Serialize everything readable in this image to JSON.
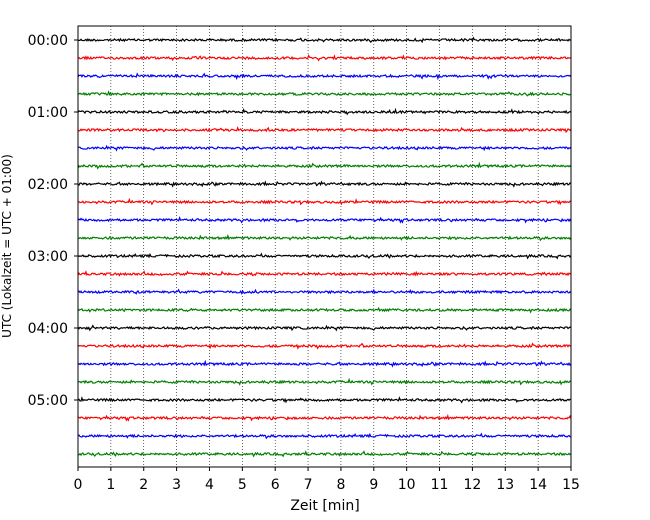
{
  "chart_data": {
    "type": "line",
    "title": "",
    "xlabel": "Zeit  [min]",
    "ylabel": "UTC (Lokalzeit = UTC + 01:00)",
    "xlim": [
      0,
      15
    ],
    "x_ticks": [
      0,
      1,
      2,
      3,
      4,
      5,
      6,
      7,
      8,
      9,
      10,
      11,
      12,
      13,
      14,
      15
    ],
    "x_tick_labels": [
      "0",
      "1",
      "2",
      "3",
      "4",
      "5",
      "6",
      "7",
      "8",
      "9",
      "10",
      "11",
      "12",
      "13",
      "14",
      "15"
    ],
    "y_tick_labels": [
      "00:00",
      "01:00",
      "02:00",
      "03:00",
      "04:00",
      "05:00"
    ],
    "grid": "vertical dotted",
    "legend": "none",
    "trace_colors": [
      "#000000",
      "#ff0000",
      "#0000ff",
      "#008000"
    ],
    "traces": [
      {
        "start": "00:00",
        "color": "#000000"
      },
      {
        "start": "00:15",
        "color": "#ff0000"
      },
      {
        "start": "00:30",
        "color": "#0000ff"
      },
      {
        "start": "00:45",
        "color": "#008000"
      },
      {
        "start": "01:00",
        "color": "#000000"
      },
      {
        "start": "01:15",
        "color": "#ff0000"
      },
      {
        "start": "01:30",
        "color": "#0000ff"
      },
      {
        "start": "01:45",
        "color": "#008000"
      },
      {
        "start": "02:00",
        "color": "#000000"
      },
      {
        "start": "02:15",
        "color": "#ff0000"
      },
      {
        "start": "02:30",
        "color": "#0000ff"
      },
      {
        "start": "02:45",
        "color": "#008000"
      },
      {
        "start": "03:00",
        "color": "#000000"
      },
      {
        "start": "03:15",
        "color": "#ff0000"
      },
      {
        "start": "03:30",
        "color": "#0000ff"
      },
      {
        "start": "03:45",
        "color": "#008000"
      },
      {
        "start": "04:00",
        "color": "#000000"
      },
      {
        "start": "04:15",
        "color": "#ff0000"
      },
      {
        "start": "04:30",
        "color": "#0000ff"
      },
      {
        "start": "04:45",
        "color": "#008000"
      },
      {
        "start": "05:00",
        "color": "#000000"
      },
      {
        "start": "05:15",
        "color": "#ff0000"
      },
      {
        "start": "05:30",
        "color": "#0000ff"
      },
      {
        "start": "05:45",
        "color": "#008000"
      }
    ]
  }
}
